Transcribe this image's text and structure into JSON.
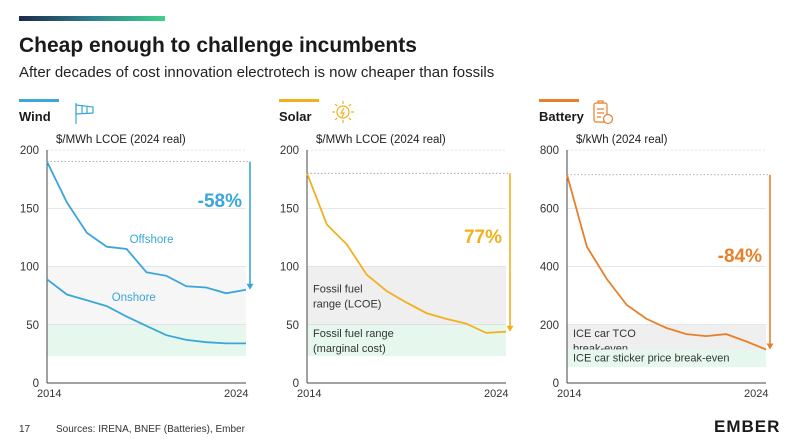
{
  "header": {
    "title": "Cheap enough to challenge incumbents",
    "subtitle": "After decades of cost innovation electrotech is now cheaper than fossils"
  },
  "footer": {
    "page": "17",
    "sources": "Sources: IRENA, BNEF (Batteries), Ember",
    "logo": "EMBER"
  },
  "colors": {
    "wind": "#3aa6d9",
    "solar": "#f2b01e",
    "battery": "#e8802a",
    "fossil_band": "#efefef",
    "marginal_band": "#e6f8ee",
    "axis": "#444444"
  },
  "chart_data": [
    {
      "type": "line",
      "title": "Wind",
      "icon": "wind-turbine-icon",
      "ylabel": "$/MWh LCOE (2024 real)",
      "ylim": [
        0,
        200
      ],
      "yticks": [
        0,
        50,
        100,
        150,
        200
      ],
      "x": [
        2014,
        2015,
        2016,
        2017,
        2018,
        2019,
        2020,
        2021,
        2022,
        2023,
        2024
      ],
      "xlabels": [
        "2014",
        "2024"
      ],
      "series": [
        {
          "name": "Offshore",
          "values": [
            190,
            155,
            129,
            117,
            115,
            95,
            92,
            83,
            82,
            77,
            80
          ]
        },
        {
          "name": "Onshore",
          "values": [
            89,
            76,
            71,
            66,
            57,
            49,
            41,
            37,
            35,
            34,
            34
          ]
        }
      ],
      "bands": [],
      "annotation": "-58%",
      "arrow": [
        190,
        80
      ]
    },
    {
      "type": "line",
      "title": "Solar",
      "icon": "solar-panel-icon",
      "ylabel": "$/MWh LCOE (2024 real)",
      "ylim": [
        0,
        200
      ],
      "yticks": [
        0,
        50,
        100,
        150,
        200
      ],
      "x": [
        2014,
        2015,
        2016,
        2017,
        2018,
        2019,
        2020,
        2021,
        2022,
        2023,
        2024
      ],
      "xlabels": [
        "2014",
        "2024"
      ],
      "series": [
        {
          "name": "",
          "values": [
            180,
            136,
            119,
            93,
            79,
            69,
            60,
            55,
            51,
            43,
            44
          ]
        }
      ],
      "bands": [
        {
          "label": [
            "Fossil fuel",
            "range (LCOE)"
          ],
          "y": [
            50,
            100
          ]
        },
        {
          "label": [
            "Fossil fuel range",
            "(marginal cost)"
          ],
          "y": [
            23,
            50
          ]
        }
      ],
      "annotation": "77%",
      "arrow": [
        180,
        44
      ]
    },
    {
      "type": "line",
      "title": "Battery",
      "icon": "battery-cost-icon",
      "ylabel": "$/kWh (2024 real)",
      "ylim": [
        0,
        800
      ],
      "yticks": [
        0,
        200,
        400,
        600,
        800
      ],
      "x": [
        2014,
        2015,
        2016,
        2017,
        2018,
        2019,
        2020,
        2021,
        2022,
        2023,
        2024
      ],
      "xlabels": [
        "2014",
        "2024"
      ],
      "series": [
        {
          "name": "",
          "values": [
            715,
            468,
            357,
            268,
            220,
            189,
            168,
            161,
            168,
            143,
            115
          ]
        }
      ],
      "bands": [
        {
          "label": [
            "ICE car TCO",
            "break-even"
          ],
          "y": [
            115,
            200
          ]
        },
        {
          "label": [
            "ICE car sticker price break-even"
          ],
          "y": [
            55,
            115
          ]
        }
      ],
      "annotation": "-84%",
      "arrow": [
        715,
        115
      ]
    }
  ]
}
